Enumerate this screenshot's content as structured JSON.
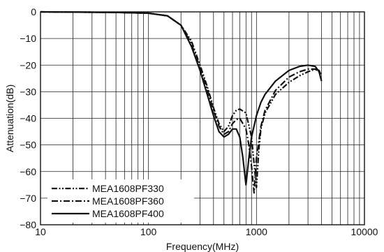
{
  "chart_data": {
    "type": "line",
    "title": "",
    "xlabel": "Frequency(MHz)",
    "ylabel": "Attenuation(dB)",
    "x_scale": "log",
    "xlim": [
      10,
      10000
    ],
    "ylim": [
      -80,
      0
    ],
    "x_ticks": [
      "10",
      "100",
      "1000",
      "10000"
    ],
    "y_ticks": [
      "0",
      "−10",
      "−20",
      "−30",
      "−40",
      "−50",
      "−60",
      "−70",
      "−80"
    ],
    "grid": true,
    "legend_position": "bottom-left",
    "series": [
      {
        "name": "MEA1608PF330",
        "style": "dash-dot-dot",
        "x": [
          10,
          50,
          100,
          150,
          200,
          250,
          300,
          350,
          400,
          450,
          500,
          550,
          600,
          650,
          700,
          800,
          900,
          950,
          1000,
          1050,
          1100,
          1200,
          1500,
          2000,
          2500,
          3000,
          3500,
          3800,
          4000
        ],
        "y": [
          0,
          -0.2,
          -0.5,
          -1.5,
          -5,
          -11,
          -20,
          -28,
          -36,
          -42,
          -45,
          -43,
          -39,
          -37,
          -36.5,
          -38,
          -47,
          -57,
          -66,
          -52,
          -44,
          -38,
          -31,
          -26.5,
          -24,
          -22.5,
          -21.5,
          -22,
          -24
        ]
      },
      {
        "name": "MEA1608PF360",
        "style": "dash-dot",
        "x": [
          10,
          50,
          100,
          150,
          200,
          250,
          300,
          350,
          400,
          450,
          500,
          550,
          600,
          650,
          700,
          800,
          850,
          900,
          950,
          1000,
          1100,
          1200,
          1500,
          2000,
          2500,
          3000,
          3500,
          3800,
          4000
        ],
        "y": [
          0,
          -0.2,
          -0.5,
          -1.5,
          -5,
          -12,
          -21,
          -29,
          -37,
          -43,
          -46,
          -45,
          -42,
          -40.5,
          -40,
          -44,
          -50,
          -58,
          -68,
          -55,
          -43,
          -37,
          -29.5,
          -24.5,
          -22.5,
          -21.5,
          -21.5,
          -22.5,
          -22.5
        ]
      },
      {
        "name": "MEA1608PF400",
        "style": "solid",
        "x": [
          10,
          50,
          100,
          150,
          200,
          250,
          300,
          350,
          400,
          450,
          500,
          550,
          600,
          650,
          700,
          750,
          800,
          850,
          900,
          1000,
          1100,
          1200,
          1500,
          2000,
          2500,
          3000,
          3500,
          3800,
          4000
        ],
        "y": [
          0,
          -0.2,
          -0.5,
          -1.5,
          -5,
          -13,
          -22,
          -31,
          -39,
          -45,
          -47,
          -46,
          -44,
          -44,
          -47,
          -55,
          -65,
          -55,
          -47,
          -39,
          -34,
          -31,
          -26,
          -22,
          -20.5,
          -20,
          -20.5,
          -22.5,
          -26
        ]
      }
    ]
  }
}
